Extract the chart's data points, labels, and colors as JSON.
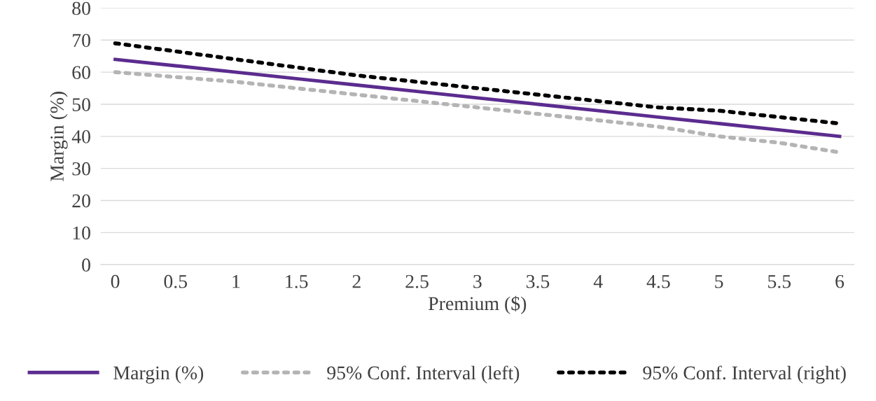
{
  "chart_data": {
    "type": "line",
    "xlabel": "Premium ($)",
    "ylabel": "Margin (%)",
    "x": [
      0,
      0.5,
      1,
      1.5,
      2,
      2.5,
      3,
      3.5,
      4,
      4.5,
      5,
      5.5,
      6
    ],
    "series": [
      {
        "name": "Margin (%)",
        "color": "#5b2c8f",
        "line_style": "solid",
        "values": [
          64,
          62,
          60,
          58,
          56,
          54,
          52,
          50,
          48,
          46,
          44,
          42,
          40
        ]
      },
      {
        "name": "95% Conf. Interval (left)",
        "color": "#b4b4b4",
        "line_style": "dotted",
        "values": [
          60,
          58.5,
          57,
          55,
          53,
          51,
          49,
          47,
          45,
          43,
          40,
          38,
          35
        ]
      },
      {
        "name": "95% Conf. Interval (right)",
        "color": "#000000",
        "line_style": "dotted",
        "values": [
          69,
          66.5,
          64,
          61.5,
          59,
          57,
          55,
          53,
          51,
          49,
          48,
          46,
          44
        ]
      }
    ],
    "xlim": [
      -0.12,
      6.12
    ],
    "xticks": [
      0,
      0.5,
      1,
      1.5,
      2,
      2.5,
      3,
      3.5,
      4,
      4.5,
      5,
      5.5,
      6
    ],
    "ylim": [
      0,
      80
    ],
    "yticks": [
      0,
      10,
      20,
      30,
      40,
      50,
      60,
      70,
      80
    ],
    "grid": "y",
    "legend": "bottom",
    "marker": "none"
  }
}
